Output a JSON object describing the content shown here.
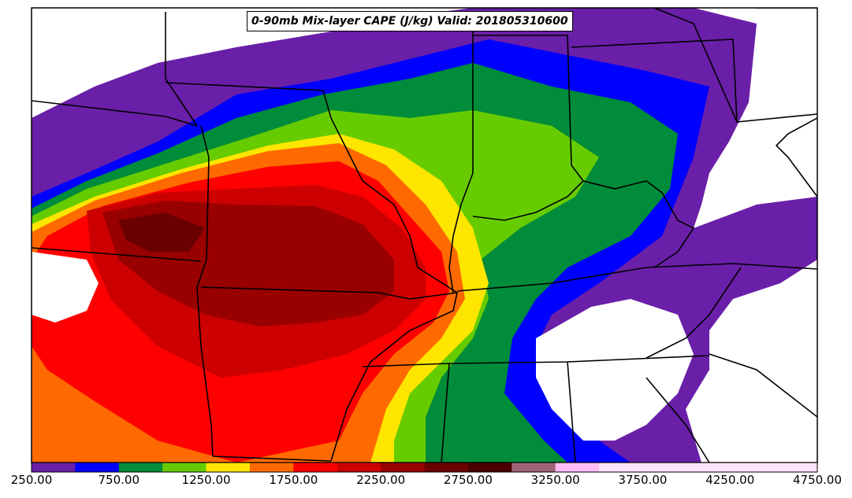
{
  "title": "0-90mb Mix-layer CAPE (J/kg) Valid: 201805310600",
  "colorbar": {
    "colors": [
      "#6a1fa8",
      "#0000ff",
      "#008c3a",
      "#66cc00",
      "#ffe600",
      "#ff6a00",
      "#ff0000",
      "#cc0000",
      "#990000",
      "#6b0000",
      "#4a0000",
      "#a0647a",
      "#ffbdf5",
      "#ffe3fb"
    ],
    "tick_labels": [
      "250.00",
      "750.00",
      "1250.00",
      "1750.00",
      "2250.00",
      "2750.00",
      "3250.00",
      "3750.00",
      "4250.00",
      "4750.00"
    ]
  },
  "chart_data": {
    "type": "heatmap",
    "title": "0-90mb Mix-layer CAPE (J/kg) Valid: 201805310600",
    "units": "J/kg",
    "color_levels": [
      250,
      500,
      750,
      1000,
      1250,
      1500,
      1750,
      2000,
      2250,
      2500,
      2750,
      3000,
      3250,
      3500,
      3750,
      4000,
      4250,
      4500,
      4750
    ],
    "colorbar_ticks": [
      250,
      750,
      1250,
      1750,
      2250,
      2750,
      3250,
      3750,
      4250,
      4750
    ],
    "valid_time": "201805310600"
  }
}
